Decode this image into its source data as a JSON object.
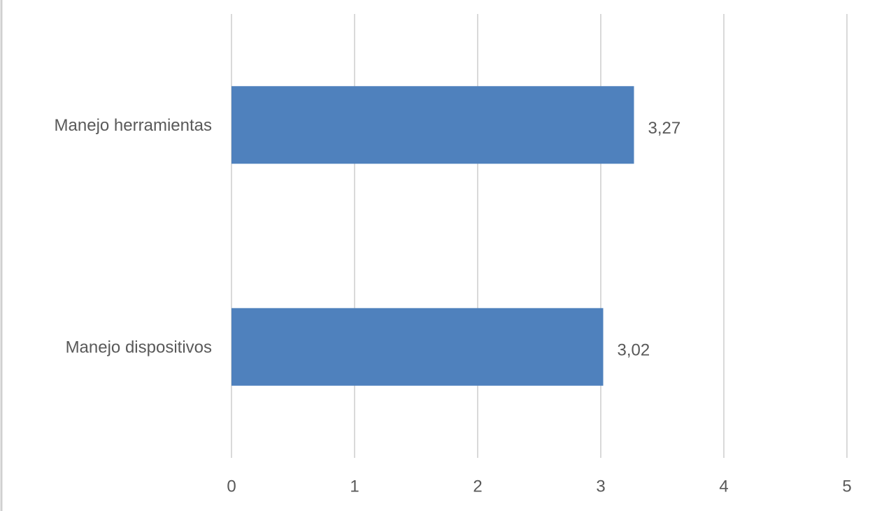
{
  "chart_data": {
    "type": "bar",
    "orientation": "horizontal",
    "categories": [
      "Manejo herramientas",
      "Manejo dispositivos"
    ],
    "values": [
      3.27,
      3.02
    ],
    "value_labels": [
      "3,27",
      "3,02"
    ],
    "color": "#4f81bd",
    "xlim": [
      0,
      5
    ],
    "xticks": [
      0,
      1,
      2,
      3,
      4,
      5
    ],
    "grid": true
  }
}
